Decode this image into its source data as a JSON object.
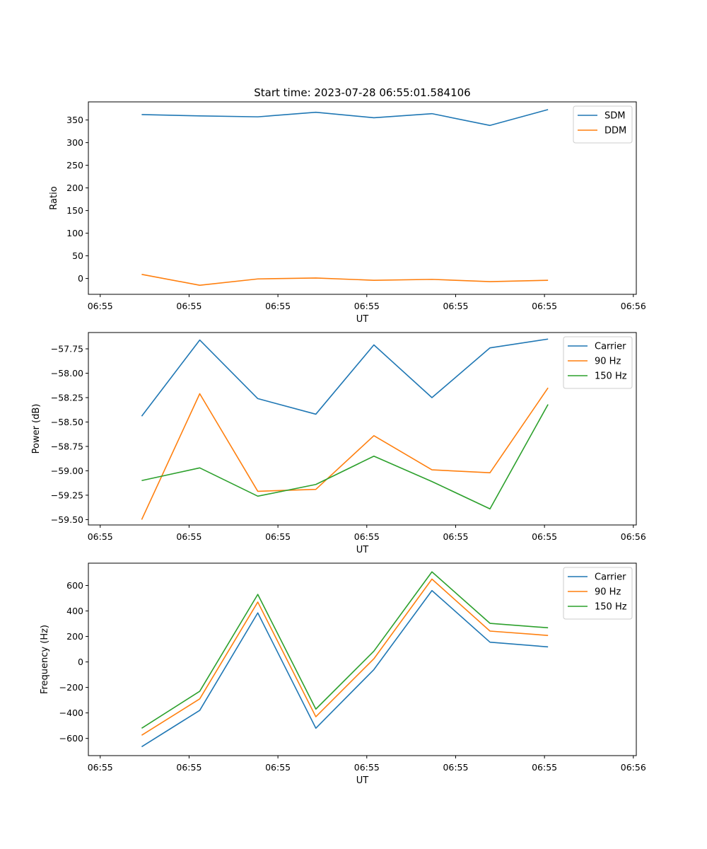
{
  "figure_title": "Start time: 2023-07-28 06:55:01.584106",
  "chart_data": [
    {
      "type": "line",
      "id": "ratio",
      "title": "Start time: 2023-07-28 06:55:01.584106",
      "xlabel": "UT",
      "ylabel": "Ratio",
      "x_tick_labels": [
        "06:55",
        "06:55",
        "06:55",
        "06:55",
        "06:55",
        "06:55",
        "06:56"
      ],
      "x_tick_values": [
        0,
        1.5,
        3,
        4.5,
        6,
        7.5,
        9
      ],
      "xlim": [
        -0.2,
        9.05
      ],
      "ylim": [
        -35,
        390
      ],
      "y_ticks": [
        0,
        50,
        100,
        150,
        200,
        250,
        300,
        350
      ],
      "y_tick_labels": [
        "0",
        "50",
        "100",
        "150",
        "200",
        "250",
        "300",
        "350"
      ],
      "legend": "top-right",
      "x": [
        0.7,
        1.68,
        2.66,
        3.64,
        4.62,
        5.6,
        6.58,
        7.56
      ],
      "series": [
        {
          "name": "SDM",
          "color": "#1f77b4",
          "values": [
            362,
            359,
            357,
            367,
            355,
            364,
            338,
            373
          ]
        },
        {
          "name": "DDM",
          "color": "#ff7f0e",
          "values": [
            9,
            -15,
            -1,
            1,
            -4,
            -2,
            -7,
            -4
          ]
        }
      ]
    },
    {
      "type": "line",
      "id": "power",
      "title": "",
      "xlabel": "UT",
      "ylabel": "Power (dB)",
      "x_tick_labels": [
        "06:55",
        "06:55",
        "06:55",
        "06:55",
        "06:55",
        "06:55",
        "06:56"
      ],
      "x_tick_values": [
        0,
        1.5,
        3,
        4.5,
        6,
        7.5,
        9
      ],
      "xlim": [
        -0.2,
        9.05
      ],
      "ylim": [
        -59.555,
        -57.583
      ],
      "y_ticks": [
        -59.5,
        -59.25,
        -59.0,
        -58.75,
        -58.5,
        -58.25,
        -58.0,
        -57.75
      ],
      "y_tick_labels": [
        "−59.50",
        "−59.25",
        "−59.00",
        "−58.75",
        "−58.50",
        "−58.25",
        "−58.00",
        "−57.75"
      ],
      "legend": "top-right",
      "x": [
        0.7,
        1.68,
        2.66,
        3.64,
        4.62,
        5.6,
        6.58,
        7.56
      ],
      "series": [
        {
          "name": "Carrier",
          "color": "#1f77b4",
          "values": [
            -58.44,
            -57.66,
            -58.26,
            -58.42,
            -57.71,
            -58.25,
            -57.74,
            -57.65
          ]
        },
        {
          "name": "90 Hz",
          "color": "#ff7f0e",
          "values": [
            -59.5,
            -58.21,
            -59.21,
            -59.19,
            -58.64,
            -58.99,
            -59.02,
            -58.15
          ]
        },
        {
          "name": "150 Hz",
          "color": "#2ca02c",
          "values": [
            -59.1,
            -58.97,
            -59.26,
            -59.14,
            -58.85,
            -59.11,
            -59.39,
            -58.32
          ]
        }
      ]
    },
    {
      "type": "line",
      "id": "frequency",
      "title": "",
      "xlabel": "UT",
      "ylabel": "Frequency (Hz)",
      "x_tick_labels": [
        "06:55",
        "06:55",
        "06:55",
        "06:55",
        "06:55",
        "06:55",
        "06:56"
      ],
      "x_tick_values": [
        0,
        1.5,
        3,
        4.5,
        6,
        7.5,
        9
      ],
      "xlim": [
        -0.2,
        9.05
      ],
      "ylim": [
        -735,
        775
      ],
      "y_ticks": [
        -600,
        -400,
        -200,
        0,
        200,
        400,
        600
      ],
      "y_tick_labels": [
        "−600",
        "−400",
        "−200",
        "0",
        "200",
        "400",
        "600"
      ],
      "legend": "top-right",
      "x": [
        0.7,
        1.68,
        2.66,
        3.64,
        4.62,
        5.6,
        6.58,
        7.56
      ],
      "series": [
        {
          "name": "Carrier",
          "color": "#1f77b4",
          "values": [
            -665,
            -380,
            385,
            -520,
            -60,
            560,
            155,
            118
          ]
        },
        {
          "name": "90 Hz",
          "color": "#ff7f0e",
          "values": [
            -575,
            -290,
            470,
            -430,
            25,
            650,
            242,
            208
          ]
        },
        {
          "name": "150 Hz",
          "color": "#2ca02c",
          "values": [
            -520,
            -230,
            530,
            -370,
            85,
            707,
            303,
            268
          ]
        }
      ]
    }
  ]
}
